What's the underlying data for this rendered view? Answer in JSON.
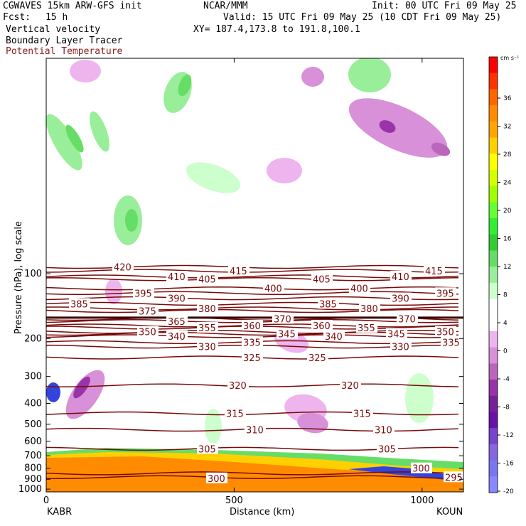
{
  "header": {
    "model": "CGWAVES 15km ARW-GFS init",
    "org": "NCAR/MMM",
    "init": "Init: 00 UTC Fri 09 May 25",
    "fcst_label": "Fcst:",
    "fcst_value": "15 h",
    "valid": "Valid: 15 UTC Fri 09 May 25 (10 CDT Fri 09 May 25)",
    "field1": "Vertical velocity",
    "field2": "Boundary Layer Tracer",
    "field3": "Potential Temperature",
    "xy": "XY= 187.4,173.8 to 191.8,100.1"
  },
  "colors": {
    "theta": "#7a0a0a",
    "field3_text": "#8b1a1a"
  },
  "chart_data": {
    "type": "heatmap",
    "ylabel": "Pressure (hPa), log scale",
    "xlabel": "Distance (km)",
    "x_start_label": "KABR",
    "x_end_label": "KOUN",
    "x_ticks": [
      0,
      500,
      1000
    ],
    "xlim": [
      0,
      1110
    ],
    "y_ticks": [
      100,
      200,
      300,
      400,
      500,
      600,
      700,
      800,
      900,
      1000
    ],
    "y_scale": "log",
    "ylim_hpa": [
      1030,
      10
    ],
    "colorbar": {
      "unit": "cm s⁻¹",
      "labels": [
        "36",
        "32",
        "28",
        "24",
        "20",
        "16",
        "12",
        "8",
        "4",
        "0",
        "-4",
        "-8",
        "-12",
        "-16",
        "-20"
      ],
      "colors": [
        "#ff0000",
        "#ff3300",
        "#ff6600",
        "#ff8c00",
        "#ffa500",
        "#ffd000",
        "#ffff00",
        "#d4ff00",
        "#a0ff00",
        "#66ff33",
        "#33ee33",
        "#33cc33",
        "#66dd66",
        "#99ee99",
        "#ccffcc",
        "#ffffff",
        "#ffffff",
        "#eeb4ee",
        "#d890d8",
        "#bb66bb",
        "#9933aa",
        "#772299",
        "#6a11aa",
        "#7744cc",
        "#8866dd",
        "#7777ee",
        "#8888ff"
      ]
    },
    "theta_contours": [
      {
        "label": "420",
        "p": 93,
        "lx": 160
      },
      {
        "label": "415",
        "p": 97,
        "lx": 323
      },
      {
        "label": "415",
        "p": 97,
        "lx": 598
      },
      {
        "label": "410",
        "p": 103,
        "lx": 236
      },
      {
        "label": "410",
        "p": 103,
        "lx": 551
      },
      {
        "label": "405",
        "p": 106,
        "lx": 279
      },
      {
        "label": "405",
        "p": 106,
        "lx": 440
      },
      {
        "label": "400",
        "p": 117,
        "lx": 372
      },
      {
        "label": "400",
        "p": 117,
        "lx": 493
      },
      {
        "label": "395",
        "p": 123,
        "lx": 189
      },
      {
        "label": "395",
        "p": 123,
        "lx": 614
      },
      {
        "label": "390",
        "p": 130,
        "lx": 236
      },
      {
        "label": "390",
        "p": 130,
        "lx": 551
      },
      {
        "label": "385",
        "p": 138,
        "lx": 99
      },
      {
        "label": "385",
        "p": 138,
        "lx": 449
      },
      {
        "label": "380",
        "p": 145,
        "lx": 279
      },
      {
        "label": "380",
        "p": 145,
        "lx": 507
      },
      {
        "label": "375",
        "p": 149,
        "lx": 195
      },
      {
        "label": "370",
        "p": 162,
        "lx": 385
      },
      {
        "label": "370",
        "p": 162,
        "lx": 560
      },
      {
        "label": "365",
        "p": 166,
        "lx": 236
      },
      {
        "label": "360",
        "p": 174,
        "lx": 342
      },
      {
        "label": "360",
        "p": 174,
        "lx": 440
      },
      {
        "label": "355",
        "p": 178,
        "lx": 279
      },
      {
        "label": "355",
        "p": 178,
        "lx": 503
      },
      {
        "label": "350",
        "p": 186,
        "lx": 195
      },
      {
        "label": "350",
        "p": 186,
        "lx": 614
      },
      {
        "label": "345",
        "p": 190,
        "lx": 391
      },
      {
        "label": "345",
        "p": 190,
        "lx": 545
      },
      {
        "label": "340",
        "p": 195,
        "lx": 236
      },
      {
        "label": "340",
        "p": 195,
        "lx": 457
      },
      {
        "label": "335",
        "p": 208,
        "lx": 342
      },
      {
        "label": "335",
        "p": 208,
        "lx": 622
      },
      {
        "label": "330",
        "p": 218,
        "lx": 279
      },
      {
        "label": "330",
        "p": 218,
        "lx": 551
      },
      {
        "label": "325",
        "p": 245,
        "lx": 342
      },
      {
        "label": "325",
        "p": 245,
        "lx": 434
      },
      {
        "label": "320",
        "p": 330,
        "lx": 322
      },
      {
        "label": "320",
        "p": 330,
        "lx": 480
      },
      {
        "label": "315",
        "p": 445,
        "lx": 318
      },
      {
        "label": "315",
        "p": 445,
        "lx": 497
      },
      {
        "label": "310",
        "p": 530,
        "lx": 346
      },
      {
        "label": "310",
        "p": 530,
        "lx": 527
      },
      {
        "label": "305",
        "p": 650,
        "lx": 279
      },
      {
        "label": "305",
        "p": 650,
        "lx": 532
      },
      {
        "label": "300",
        "p": 800,
        "lx": 580
      },
      {
        "label": "300",
        "p": 890,
        "lx": 292
      },
      {
        "label": "295",
        "p": 880,
        "lx": 626
      }
    ],
    "tropopause_hpa": 160
  }
}
